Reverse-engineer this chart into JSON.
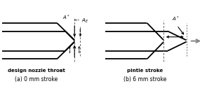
{
  "bg_color": "#ffffff",
  "line_color": "#000000",
  "dashed_color": "#666666",
  "gray_color": "#888888",
  "title_left": "design nozzle throat",
  "title_right": "pintle stroke",
  "caption_left": "(a) 0 mm stroke",
  "caption_right": "(b) 6 mm stroke"
}
